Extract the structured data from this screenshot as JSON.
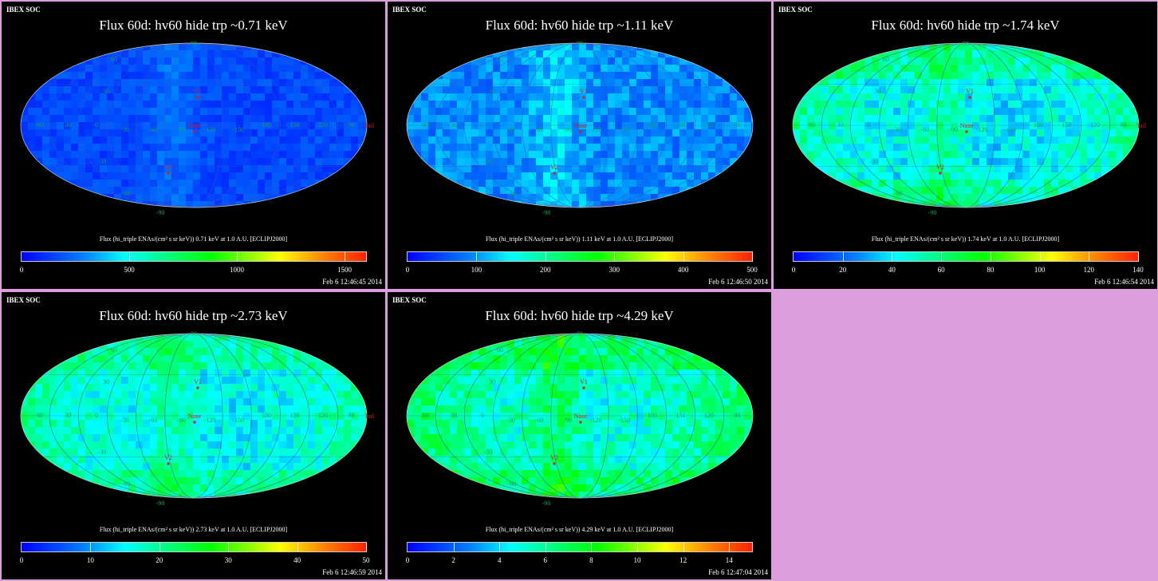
{
  "source_label": "IBEX SOC",
  "colors": {
    "background": "#dc9edc",
    "grid_label": "#1aa05a",
    "marker": "#d02020"
  },
  "grid_labels": {
    "equator": [
      "60",
      "30",
      "0",
      "-30",
      "-60",
      "-90",
      "-120",
      "-150",
      "180",
      "150",
      "120",
      "90"
    ],
    "north": [
      "90",
      "30",
      "60"
    ],
    "south": [
      "-30",
      "-60",
      "-90"
    ]
  },
  "markers": {
    "v1": "V1",
    "nose": "Nose",
    "v2": "V2",
    "tail": "Tail"
  },
  "panels": [
    {
      "title": "Flux   60d: hv60 hide trp ~0.71 keV",
      "colorbar_label": "Flux (hi_triple ENAs/(cm² s sr keV))  0.71 keV at 1.0 A.U. [ECLIPJ2000]",
      "colorbar_ticks": [
        "0",
        "500",
        "1000",
        "1500"
      ],
      "colorbar_tick_values": [
        0,
        500,
        1000,
        1500
      ],
      "colorbar_max": 1600,
      "timestamp": "Feb  6 12:46:45 2014",
      "show_tail": true
    },
    {
      "title": "Flux   60d: hv60 hide trp ~1.11 keV",
      "colorbar_label": "Flux (hi_triple ENAs/(cm² s sr keV))  1.11 keV at 1.0 A.U. [ECLIPJ2000]",
      "colorbar_ticks": [
        "0",
        "100",
        "200",
        "300",
        "400",
        "500"
      ],
      "colorbar_tick_values": [
        0,
        100,
        200,
        300,
        400,
        500
      ],
      "colorbar_max": 500,
      "timestamp": "Feb  6 12:46:50 2014",
      "show_tail": false
    },
    {
      "title": "Flux   60d: hv60 hide trp ~1.74 keV",
      "colorbar_label": "Flux (hi_triple ENAs/(cm² s sr keV))  1.74 keV at 1.0 A.U. [ECLIPJ2000]",
      "colorbar_ticks": [
        "0",
        "20",
        "40",
        "60",
        "80",
        "100",
        "120",
        "140"
      ],
      "colorbar_tick_values": [
        0,
        20,
        40,
        60,
        80,
        100,
        120,
        140
      ],
      "colorbar_max": 140,
      "timestamp": "Feb  6 12:46:54 2014",
      "show_tail": true
    },
    {
      "title": "Flux   60d: hv60 hide trp ~2.73 keV",
      "colorbar_label": "Flux (hi_triple ENAs/(cm² s sr keV))  2.73 keV at 1.0 A.U. [ECLIPJ2000]",
      "colorbar_ticks": [
        "0",
        "10",
        "20",
        "30",
        "40",
        "50"
      ],
      "colorbar_tick_values": [
        0,
        10,
        20,
        30,
        40,
        50
      ],
      "colorbar_max": 50,
      "timestamp": "Feb  6 12:46:59 2014",
      "show_tail": true
    },
    {
      "title": "Flux   60d: hv60 hide trp ~4.29 keV",
      "colorbar_label": "Flux (hi_triple ENAs/(cm² s sr keV))  4.29 keV at 1.0 A.U. [ECLIPJ2000]",
      "colorbar_ticks": [
        "0",
        "2",
        "4",
        "6",
        "8",
        "10",
        "12",
        "14"
      ],
      "colorbar_tick_values": [
        0,
        2,
        4,
        6,
        8,
        10,
        12,
        14
      ],
      "colorbar_max": 15,
      "timestamp": "Feb  6 12:47:04 2014",
      "show_tail": false
    }
  ]
}
